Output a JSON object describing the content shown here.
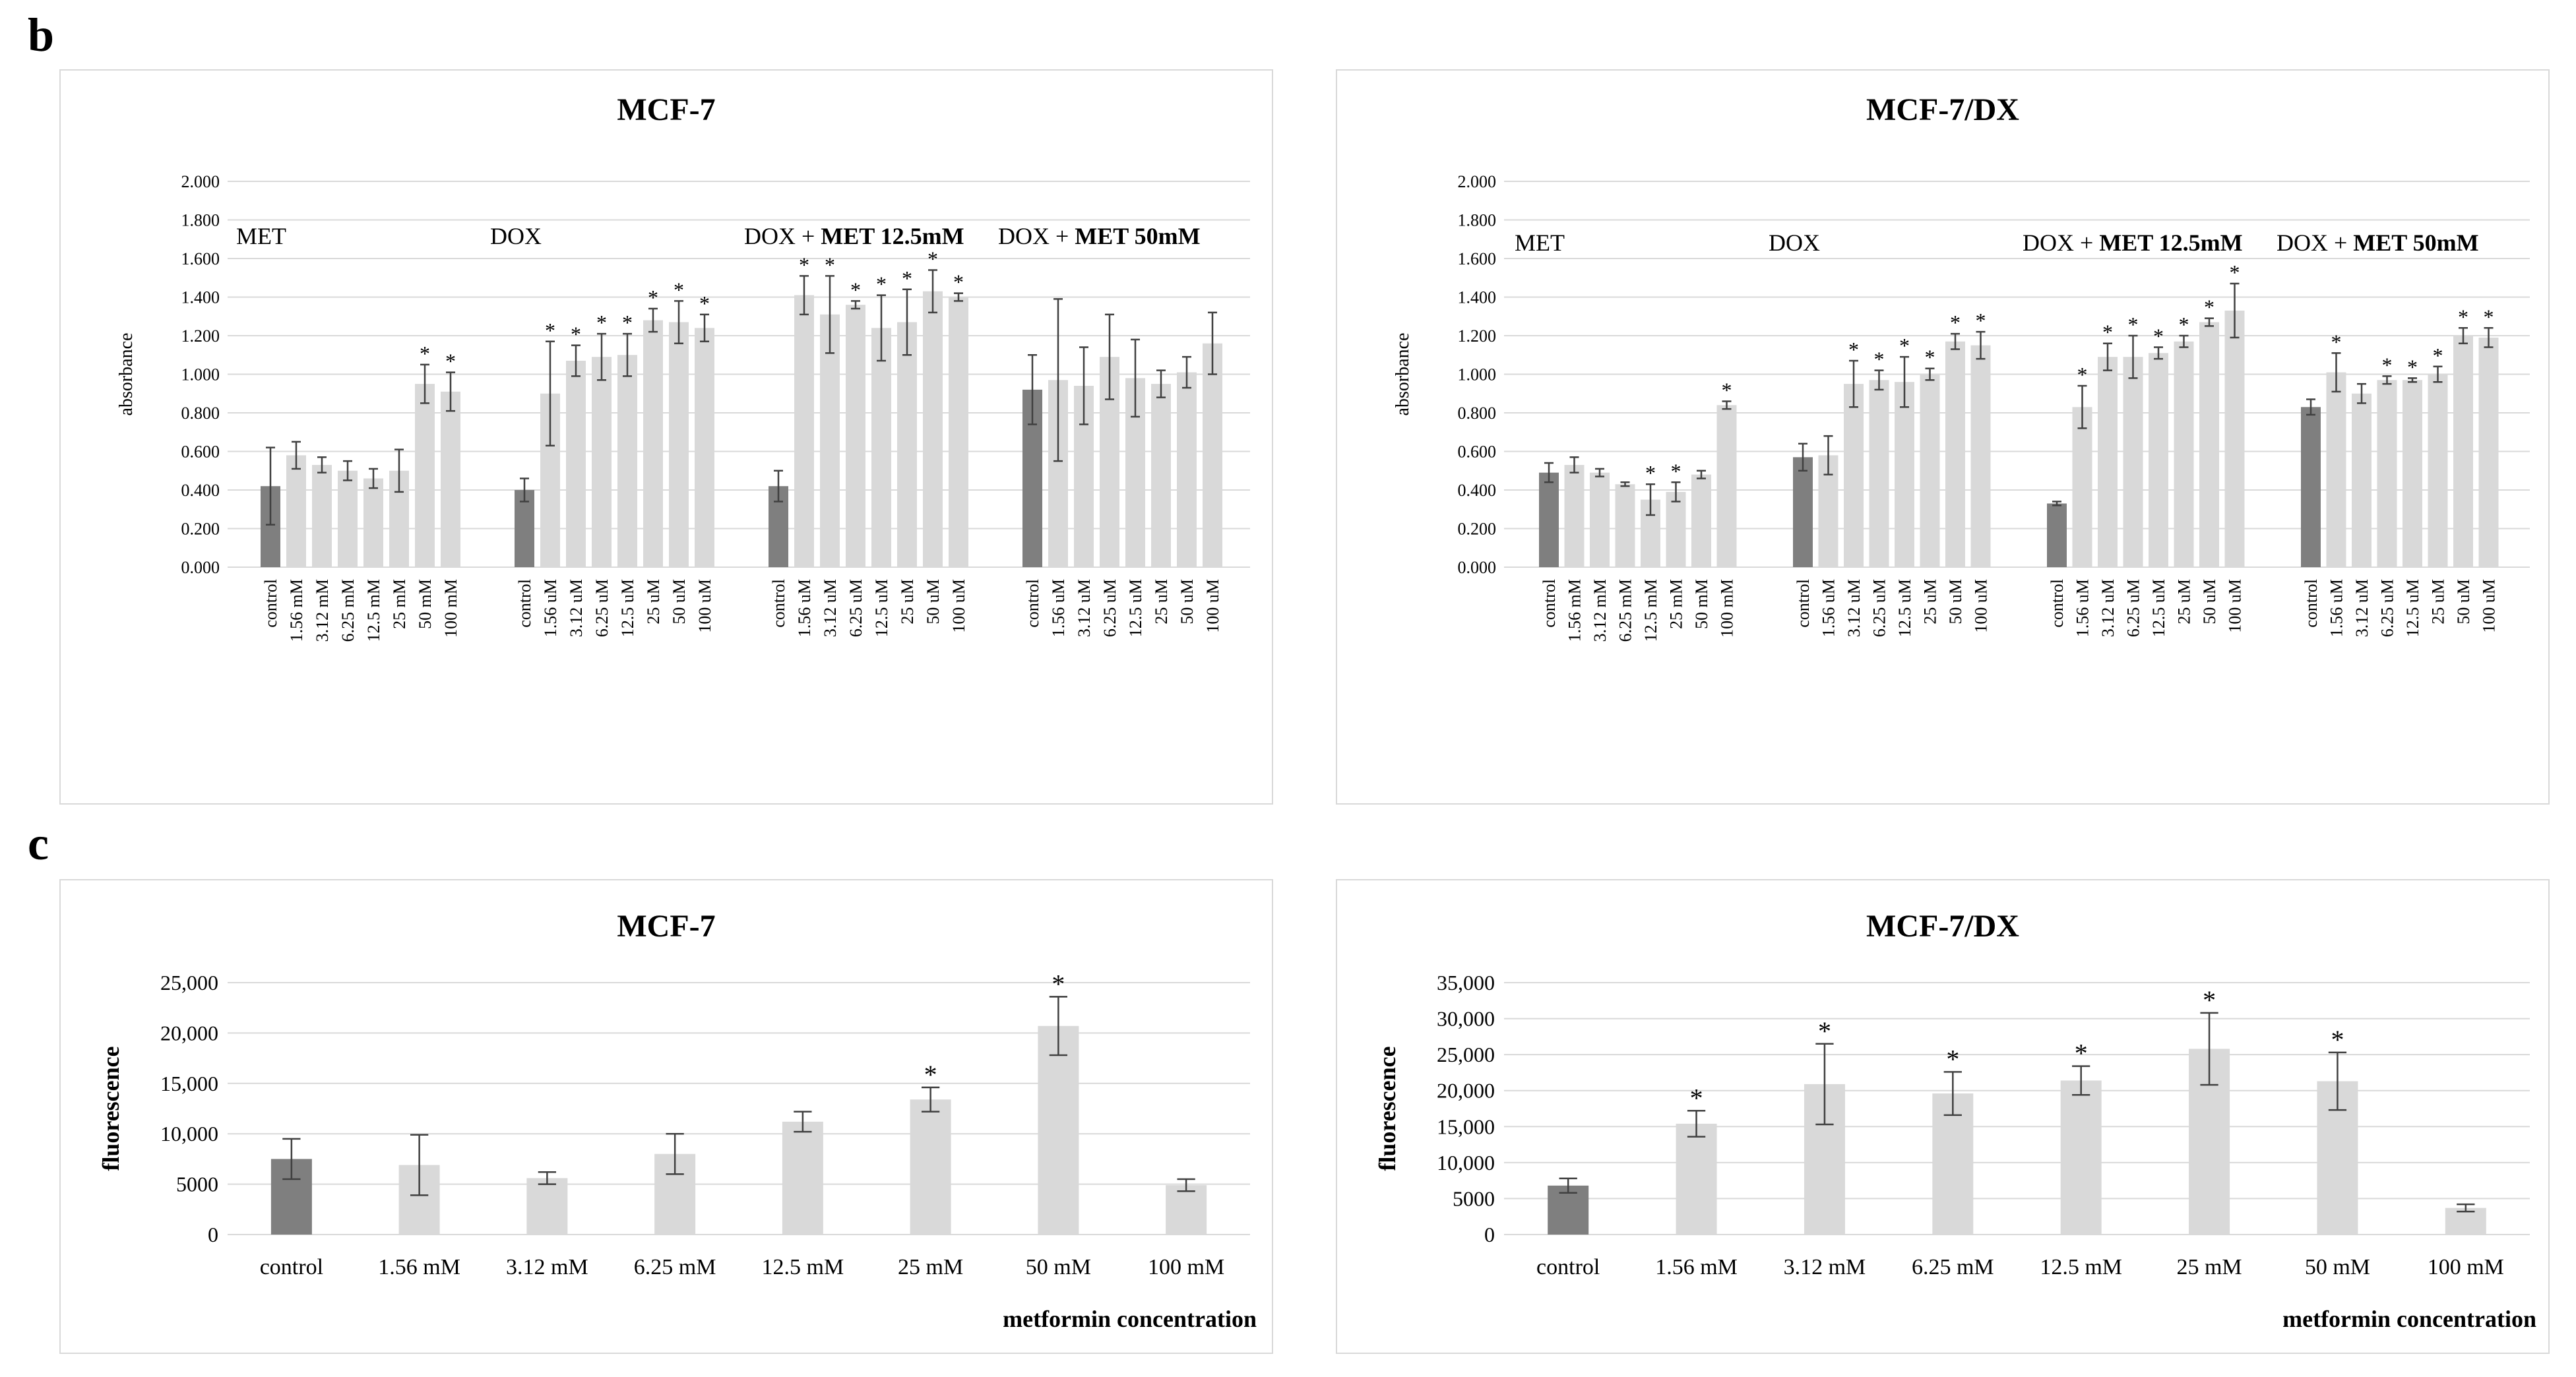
{
  "panel_labels": {
    "b": "b",
    "c": "c"
  },
  "colors": {
    "control": "#7f7f7f",
    "treated": "#d9d9d9",
    "grid": "#d9d9d9",
    "error": "#404040"
  },
  "chart_data": [
    {
      "id": "b_left",
      "type": "bar",
      "title": "MCF-7",
      "ylabel": "absorbance",
      "xlabel": "",
      "ylim": [
        0,
        2
      ],
      "yticks": [
        "0.000",
        "0.200",
        "0.400",
        "0.600",
        "0.800",
        "1.000",
        "1.200",
        "1.400",
        "1.600",
        "1.800",
        "2.000"
      ],
      "groups": [
        {
          "label": "MET",
          "label_bold": "",
          "categories": [
            "control",
            "1.56 mM",
            "3.12 mM",
            "6.25 mM",
            "12.5 mM",
            "25 mM",
            "50 mM",
            "100 mM"
          ],
          "values": [
            0.42,
            0.58,
            0.53,
            0.5,
            0.46,
            0.5,
            0.95,
            0.91
          ],
          "errors": [
            0.2,
            0.07,
            0.04,
            0.05,
            0.05,
            0.11,
            0.1,
            0.1
          ],
          "sig": [
            false,
            false,
            false,
            false,
            false,
            false,
            true,
            true
          ]
        },
        {
          "label": "DOX",
          "label_bold": "",
          "categories": [
            "control",
            "1.56 uM",
            "3.12 uM",
            "6.25 uM",
            "12.5 uM",
            "25 uM",
            "50 uM",
            "100 uM"
          ],
          "values": [
            0.4,
            0.9,
            1.07,
            1.09,
            1.1,
            1.28,
            1.27,
            1.24
          ],
          "errors": [
            0.06,
            0.27,
            0.08,
            0.12,
            0.11,
            0.06,
            0.11,
            0.07
          ],
          "sig": [
            false,
            true,
            true,
            true,
            true,
            true,
            true,
            true
          ]
        },
        {
          "label": "DOX + ",
          "label_bold": "MET 12.5mM",
          "categories": [
            "control",
            "1.56 uM",
            "3.12 uM",
            "6.25 uM",
            "12.5 uM",
            "25 uM",
            "50 uM",
            "100 uM"
          ],
          "values": [
            0.42,
            1.41,
            1.31,
            1.36,
            1.24,
            1.27,
            1.43,
            1.4
          ],
          "errors": [
            0.08,
            0.1,
            0.2,
            0.02,
            0.17,
            0.17,
            0.11,
            0.02
          ],
          "sig": [
            false,
            true,
            true,
            true,
            true,
            true,
            true,
            true
          ]
        },
        {
          "label": "DOX + ",
          "label_bold": "MET 50mM",
          "categories": [
            "control",
            "1.56 uM",
            "3.12 uM",
            "6.25 uM",
            "12.5 uM",
            "25 uM",
            "50 uM",
            "100 uM"
          ],
          "values": [
            0.92,
            0.97,
            0.94,
            1.09,
            0.98,
            0.95,
            1.01,
            1.16
          ],
          "errors": [
            0.18,
            0.42,
            0.2,
            0.22,
            0.2,
            0.07,
            0.08,
            0.16
          ],
          "sig": [
            false,
            false,
            false,
            false,
            false,
            false,
            false,
            false
          ]
        }
      ]
    },
    {
      "id": "b_right",
      "type": "bar",
      "title": "MCF-7/DX",
      "ylabel": "absorbance",
      "xlabel": "",
      "ylim": [
        0,
        2
      ],
      "yticks": [
        "0.000",
        "0.200",
        "0.400",
        "0.600",
        "0.800",
        "1.000",
        "1.200",
        "1.400",
        "1.600",
        "1.800",
        "2.000"
      ],
      "groups": [
        {
          "label": "MET",
          "label_bold": "",
          "categories": [
            "control",
            "1.56 mM",
            "3.12 mM",
            "6.25 mM",
            "12.5 mM",
            "25 mM",
            "50 mM",
            "100 mM"
          ],
          "values": [
            0.49,
            0.53,
            0.49,
            0.43,
            0.35,
            0.39,
            0.48,
            0.84
          ],
          "errors": [
            0.05,
            0.04,
            0.02,
            0.01,
            0.08,
            0.05,
            0.02,
            0.02
          ],
          "sig": [
            false,
            false,
            false,
            false,
            true,
            true,
            false,
            true
          ]
        },
        {
          "label": "DOX",
          "label_bold": "",
          "categories": [
            "control",
            "1.56 uM",
            "3.12 uM",
            "6.25 uM",
            "12.5 uM",
            "25 uM",
            "50 uM",
            "100 uM"
          ],
          "values": [
            0.57,
            0.58,
            0.95,
            0.97,
            0.96,
            1.0,
            1.17,
            1.15
          ],
          "errors": [
            0.07,
            0.1,
            0.12,
            0.05,
            0.13,
            0.03,
            0.04,
            0.07
          ],
          "sig": [
            false,
            false,
            true,
            true,
            true,
            true,
            true,
            true
          ]
        },
        {
          "label": "DOX + ",
          "label_bold": "MET 12.5mM",
          "categories": [
            "control",
            "1.56 uM",
            "3.12 uM",
            "6.25 uM",
            "12.5 uM",
            "25 uM",
            "50 uM",
            "100 uM"
          ],
          "values": [
            0.33,
            0.83,
            1.09,
            1.09,
            1.11,
            1.17,
            1.27,
            1.33
          ],
          "errors": [
            0.01,
            0.11,
            0.07,
            0.11,
            0.03,
            0.03,
            0.02,
            0.14
          ],
          "sig": [
            false,
            true,
            true,
            true,
            true,
            true,
            true,
            true
          ]
        },
        {
          "label": "DOX + ",
          "label_bold": "MET 50mM",
          "categories": [
            "control",
            "1.56 uM",
            "3.12 uM",
            "6.25 uM",
            "12.5 uM",
            "25 uM",
            "50 uM",
            "100 uM"
          ],
          "values": [
            0.83,
            1.01,
            0.9,
            0.97,
            0.97,
            1.0,
            1.2,
            1.19
          ],
          "errors": [
            0.04,
            0.1,
            0.05,
            0.02,
            0.01,
            0.04,
            0.04,
            0.05
          ],
          "sig": [
            false,
            true,
            false,
            true,
            true,
            true,
            true,
            true
          ]
        }
      ]
    },
    {
      "id": "c_left",
      "type": "bar",
      "title": "MCF-7",
      "ylabel": "fluorescence",
      "xlabel": "metformin concentration",
      "ylim": [
        0,
        25000
      ],
      "yticks": [
        "0",
        "5000",
        "10,000",
        "15,000",
        "20,000",
        "25,000"
      ],
      "categories": [
        "control",
        "1.56 mM",
        "3.12 mM",
        "6.25 mM",
        "12.5 mM",
        "25 mM",
        "50 mM",
        "100 mM"
      ],
      "values": [
        7500,
        6900,
        5600,
        8000,
        11200,
        13400,
        20700,
        4900
      ],
      "errors": [
        2000,
        3000,
        600,
        2000,
        1000,
        1200,
        2900,
        600
      ],
      "sig": [
        false,
        false,
        false,
        false,
        false,
        true,
        true,
        false
      ]
    },
    {
      "id": "c_right",
      "type": "bar",
      "title": "MCF-7/DX",
      "ylabel": "fluorescence",
      "xlabel": "metformin concentration",
      "ylim": [
        0,
        35000
      ],
      "yticks": [
        "0",
        "5000",
        "10,000",
        "15,000",
        "20,000",
        "25,000",
        "30,000",
        "35,000"
      ],
      "categories": [
        "control",
        "1.56 mM",
        "3.12 mM",
        "6.25 mM",
        "12.5 mM",
        "25 mM",
        "50 mM",
        "100 mM"
      ],
      "values": [
        6800,
        15400,
        20900,
        19600,
        21400,
        25800,
        21300,
        3700
      ],
      "errors": [
        1000,
        1800,
        5600,
        3000,
        2000,
        5000,
        4000,
        500
      ],
      "sig": [
        false,
        true,
        true,
        true,
        true,
        true,
        true,
        false
      ]
    }
  ]
}
